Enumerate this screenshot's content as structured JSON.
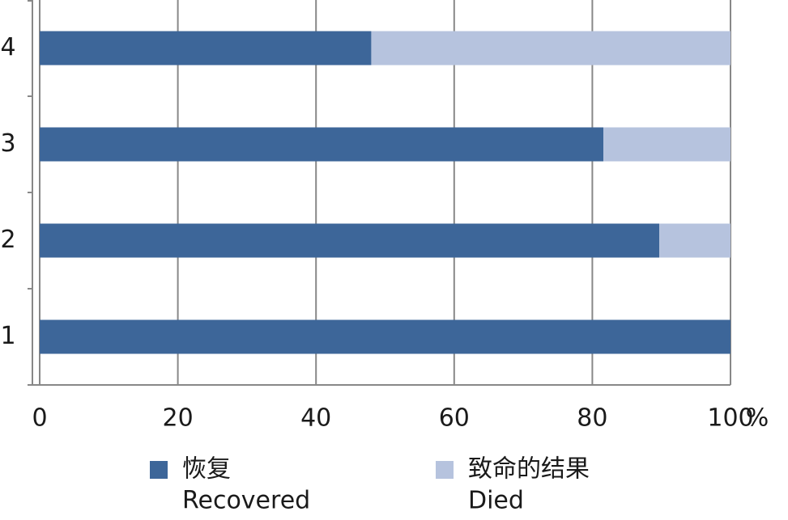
{
  "chart_data": {
    "type": "stacked_barh",
    "categories": [
      "1",
      "2",
      "3",
      "4"
    ],
    "series": [
      {
        "name": "恢复",
        "name_en": "Recovered",
        "color": "#3d6699",
        "values": [
          100,
          89.7,
          81.6,
          48
        ]
      },
      {
        "name": "致命的结果",
        "name_en": "Died",
        "color": "#b6c3de",
        "values": [
          0,
          10.3,
          18.4,
          52
        ]
      }
    ],
    "x_unit": "%",
    "xlim": [
      0,
      100
    ],
    "xticks": [
      0,
      20,
      40,
      60,
      80,
      100
    ],
    "grid": true
  }
}
